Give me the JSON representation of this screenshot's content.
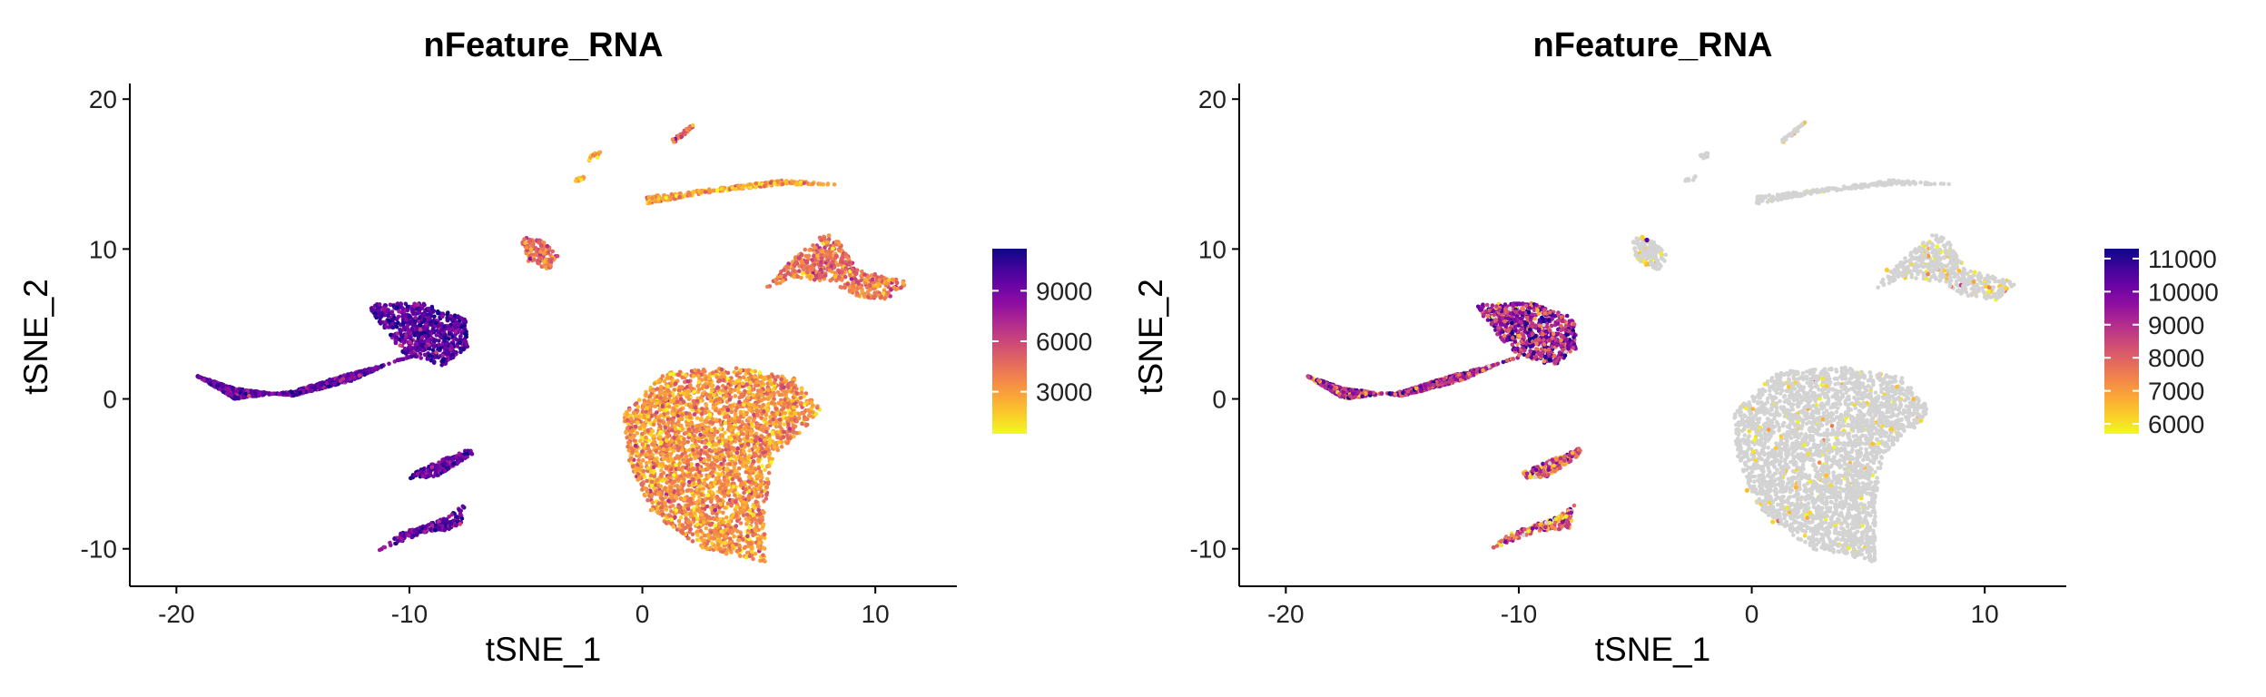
{
  "chart_data": [
    {
      "type": "scatter",
      "title": "nFeature_RNA",
      "xlabel": "tSNE_1",
      "ylabel": "tSNE_2",
      "xlim": [
        -22,
        13.5
      ],
      "ylim": [
        -12.5,
        20.8
      ],
      "x_ticks": [
        "-20",
        "-10",
        "0",
        "10"
      ],
      "x_tick_values": [
        -20,
        -10,
        0,
        10
      ],
      "y_ticks": [
        "-10",
        "0",
        "10",
        "20"
      ],
      "y_tick_values": [
        -10,
        0,
        10,
        20
      ],
      "grid": false,
      "legend_position": "right",
      "colorscale": "plasma",
      "color_range": [
        500,
        11500
      ],
      "legend_ticks": [
        "3000",
        "6000",
        "9000"
      ],
      "legend_tick_values": [
        3000,
        6000,
        9000
      ],
      "clusters": [
        {
          "center": [
            -14.5,
            1.4
          ],
          "n_feature_mean": 9600
        },
        {
          "center": [
            -9.0,
            4.0
          ],
          "n_feature_mean": 9800
        },
        {
          "center": [
            -8.8,
            -4.3
          ],
          "n_feature_mean": 9400
        },
        {
          "center": [
            -9.2,
            -8.4
          ],
          "n_feature_mean": 8900
        },
        {
          "center": [
            -4.4,
            9.8
          ],
          "n_feature_mean": 4500
        },
        {
          "center": [
            2.5,
            -3.0
          ],
          "n_feature_mean": 3400
        },
        {
          "center": [
            8.5,
            8.6
          ],
          "n_feature_mean": 4300
        },
        {
          "center": [
            3.7,
            13.6
          ],
          "n_feature_mean": 2800
        },
        {
          "center": [
            1.6,
            17.6
          ],
          "n_feature_mean": 4600
        },
        {
          "center": [
            -2.1,
            16.0
          ],
          "n_feature_mean": 3300
        }
      ]
    },
    {
      "type": "scatter",
      "title": "nFeature_RNA",
      "xlabel": "tSNE_1",
      "ylabel": "tSNE_2",
      "xlim": [
        -22,
        13.5
      ],
      "ylim": [
        -12.5,
        20.8
      ],
      "x_ticks": [
        "-20",
        "-10",
        "0",
        "10"
      ],
      "x_tick_values": [
        -20,
        -10,
        0,
        10
      ],
      "y_ticks": [
        "-10",
        "0",
        "10",
        "20"
      ],
      "y_tick_values": [
        -10,
        0,
        10,
        20
      ],
      "grid": false,
      "legend_position": "right",
      "colorscale": "plasma",
      "color_range": [
        5700,
        11300
      ],
      "below_range_color": "#d3d3d3",
      "legend_ticks": [
        "6000",
        "7000",
        "8000",
        "9000",
        "10000",
        "11000"
      ],
      "legend_tick_values": [
        6000,
        7000,
        8000,
        9000,
        10000,
        11000
      ],
      "clusters": [
        {
          "center": [
            -14.5,
            1.4
          ],
          "n_feature_mean": 9000
        },
        {
          "center": [
            -9.0,
            4.0
          ],
          "n_feature_mean": 9300
        },
        {
          "center": [
            -8.8,
            -4.3
          ],
          "n_feature_mean": 8000
        },
        {
          "center": [
            -9.2,
            -8.4
          ],
          "n_feature_mean": 7800
        },
        {
          "center": [
            -4.4,
            9.8
          ],
          "n_feature_mean": 4500
        },
        {
          "center": [
            2.5,
            -3.0
          ],
          "n_feature_mean": 3400
        },
        {
          "center": [
            8.5,
            8.6
          ],
          "n_feature_mean": 4300
        },
        {
          "center": [
            3.7,
            13.6
          ],
          "n_feature_mean": 2800
        },
        {
          "center": [
            1.6,
            17.6
          ],
          "n_feature_mean": 4600
        },
        {
          "center": [
            -2.1,
            16.0
          ],
          "n_feature_mean": 3300
        }
      ]
    }
  ]
}
